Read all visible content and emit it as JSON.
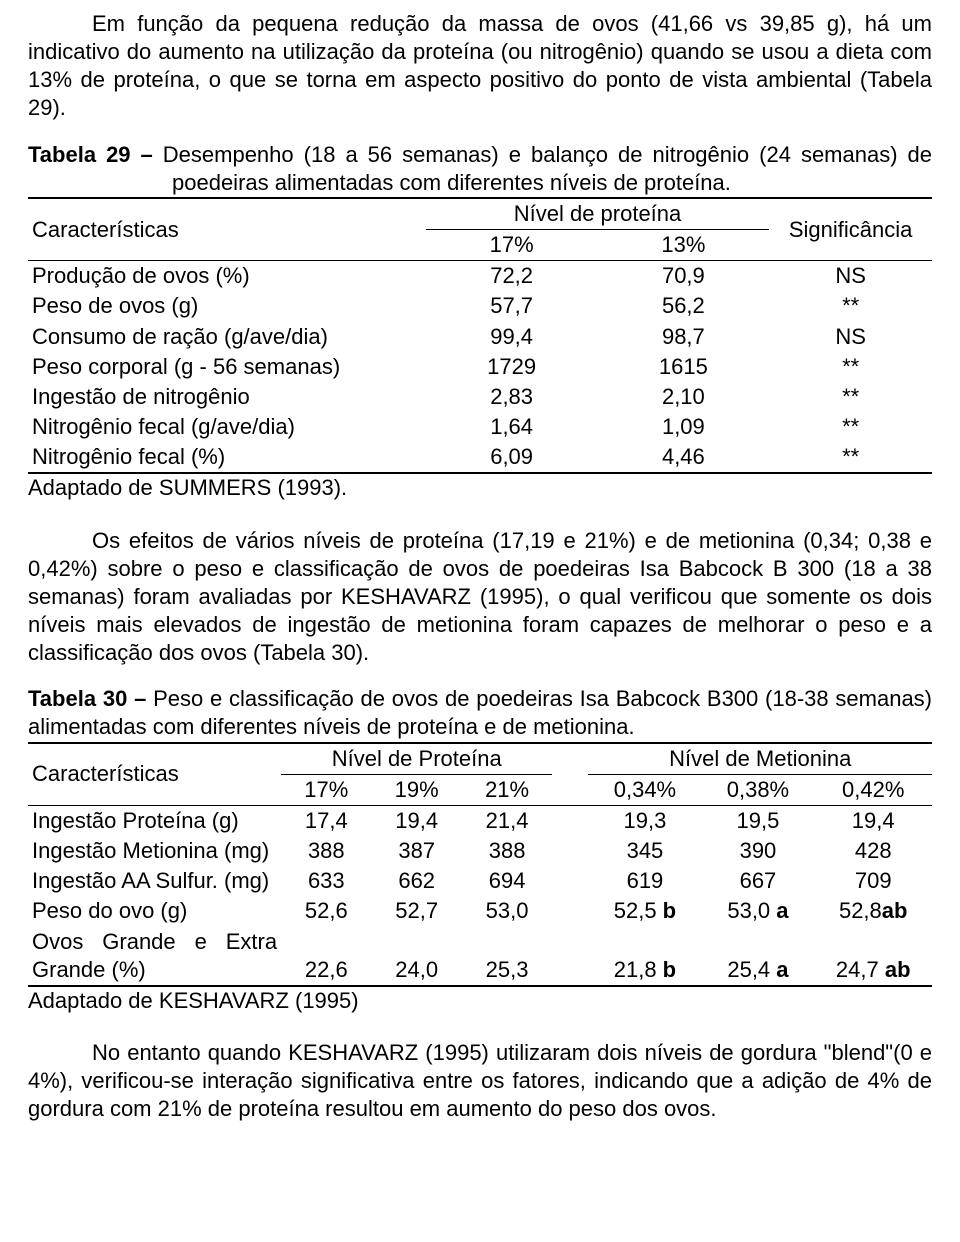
{
  "paragraph1": "Em função da pequena redução da massa de ovos (41,66 vs 39,85 g), há um indicativo do aumento na utilização da proteína (ou nitrogênio) quando se usou a dieta com 13% de proteína, o que se torna em aspecto positivo do ponto de vista ambiental (Tabela 29).",
  "table29": {
    "caption_label": "Tabela 29 – ",
    "caption_text": "Desempenho (18 a 56 semanas) e balanço de nitrogênio (24 semanas) de poedeiras alimentadas com diferentes níveis de proteína.",
    "head_char": "Características",
    "head_group": "Nível de proteína",
    "head_sig": "Significância",
    "head_17": "17%",
    "head_13": "13%",
    "rows": [
      {
        "c": "Produção de ovos (%)",
        "v17": "72,2",
        "v13": "70,9",
        "sig": "NS"
      },
      {
        "c": "Peso de ovos (g)",
        "v17": "57,7",
        "v13": "56,2",
        "sig": "**"
      },
      {
        "c": "Consumo de ração (g/ave/dia)",
        "v17": "99,4",
        "v13": "98,7",
        "sig": "NS"
      },
      {
        "c": "Peso corporal (g - 56 semanas)",
        "v17": "1729",
        "v13": "1615",
        "sig": "**"
      },
      {
        "c": "Ingestão de nitrogênio",
        "v17": "2,83",
        "v13": "2,10",
        "sig": "**"
      },
      {
        "c": "Nitrogênio fecal (g/ave/dia)",
        "v17": "1,64",
        "v13": "1,09",
        "sig": "**"
      },
      {
        "c": "Nitrogênio fecal (%)",
        "v17": "6,09",
        "v13": "4,46",
        "sig": "**"
      }
    ],
    "source": "Adaptado de SUMMERS (1993)."
  },
  "paragraph2": "Os efeitos de vários níveis de proteína (17,19 e 21%) e de metionina (0,34; 0,38 e 0,42%) sobre o peso e classificação de ovos de poedeiras Isa Babcock B 300 (18 a 38 semanas) foram avaliadas por KESHAVARZ (1995), o qual verificou que somente os dois níveis mais elevados de ingestão de metionina foram capazes de melhorar o peso e a classificação dos ovos (Tabela 30).",
  "table30": {
    "caption_label": "Tabela 30 – ",
    "caption_text": "Peso e classificação de ovos de poedeiras Isa Babcock B300 (18-38 semanas) alimentadas com diferentes níveis de proteína e de metionina.",
    "head_char": "Características",
    "head_prot": "Nível de Proteína",
    "head_met": "Nível de Metionina",
    "prot_cols": [
      "17%",
      "19%",
      "21%"
    ],
    "met_cols": [
      "0,34%",
      "0,38%",
      "0,42%"
    ],
    "rows": [
      {
        "c": "Ingestão Proteína (g)",
        "p": [
          "17,4",
          "19,4",
          "21,4"
        ],
        "m": [
          "19,3",
          "19,5",
          "19,4"
        ],
        "ml": [
          "",
          "",
          ""
        ]
      },
      {
        "c": "Ingestão Metionina (mg)",
        "p": [
          "388",
          "387",
          "388"
        ],
        "m": [
          "345",
          "390",
          "428"
        ],
        "ml": [
          "",
          "",
          ""
        ]
      },
      {
        "c": "Ingestão AA Sulfur. (mg)",
        "p": [
          "633",
          "662",
          "694"
        ],
        "m": [
          "619",
          "667",
          "709"
        ],
        "ml": [
          "",
          "",
          ""
        ]
      },
      {
        "c": "Peso do ovo (g)",
        "p": [
          "52,6",
          "52,7",
          "53,0"
        ],
        "m": [
          "52,5",
          "53,0",
          "52,8"
        ],
        "ml": [
          " b",
          " a",
          "ab"
        ]
      },
      {
        "c": "Ovos Grande e Extra Grande (%)",
        "p": [
          "22,6",
          "24,0",
          "25,3"
        ],
        "m": [
          "21,8",
          "25,4",
          "24,7"
        ],
        "ml": [
          " b",
          " a",
          " ab"
        ]
      }
    ],
    "source": "Adaptado de KESHAVARZ (1995)"
  },
  "paragraph3": "No entanto quando KESHAVARZ (1995) utilizaram dois níveis de gordura \"blend\"(0 e 4%), verificou-se interação significativa entre os fatores, indicando que a adição de 4% de gordura com 21% de proteína resultou em aumento do peso dos ovos."
}
